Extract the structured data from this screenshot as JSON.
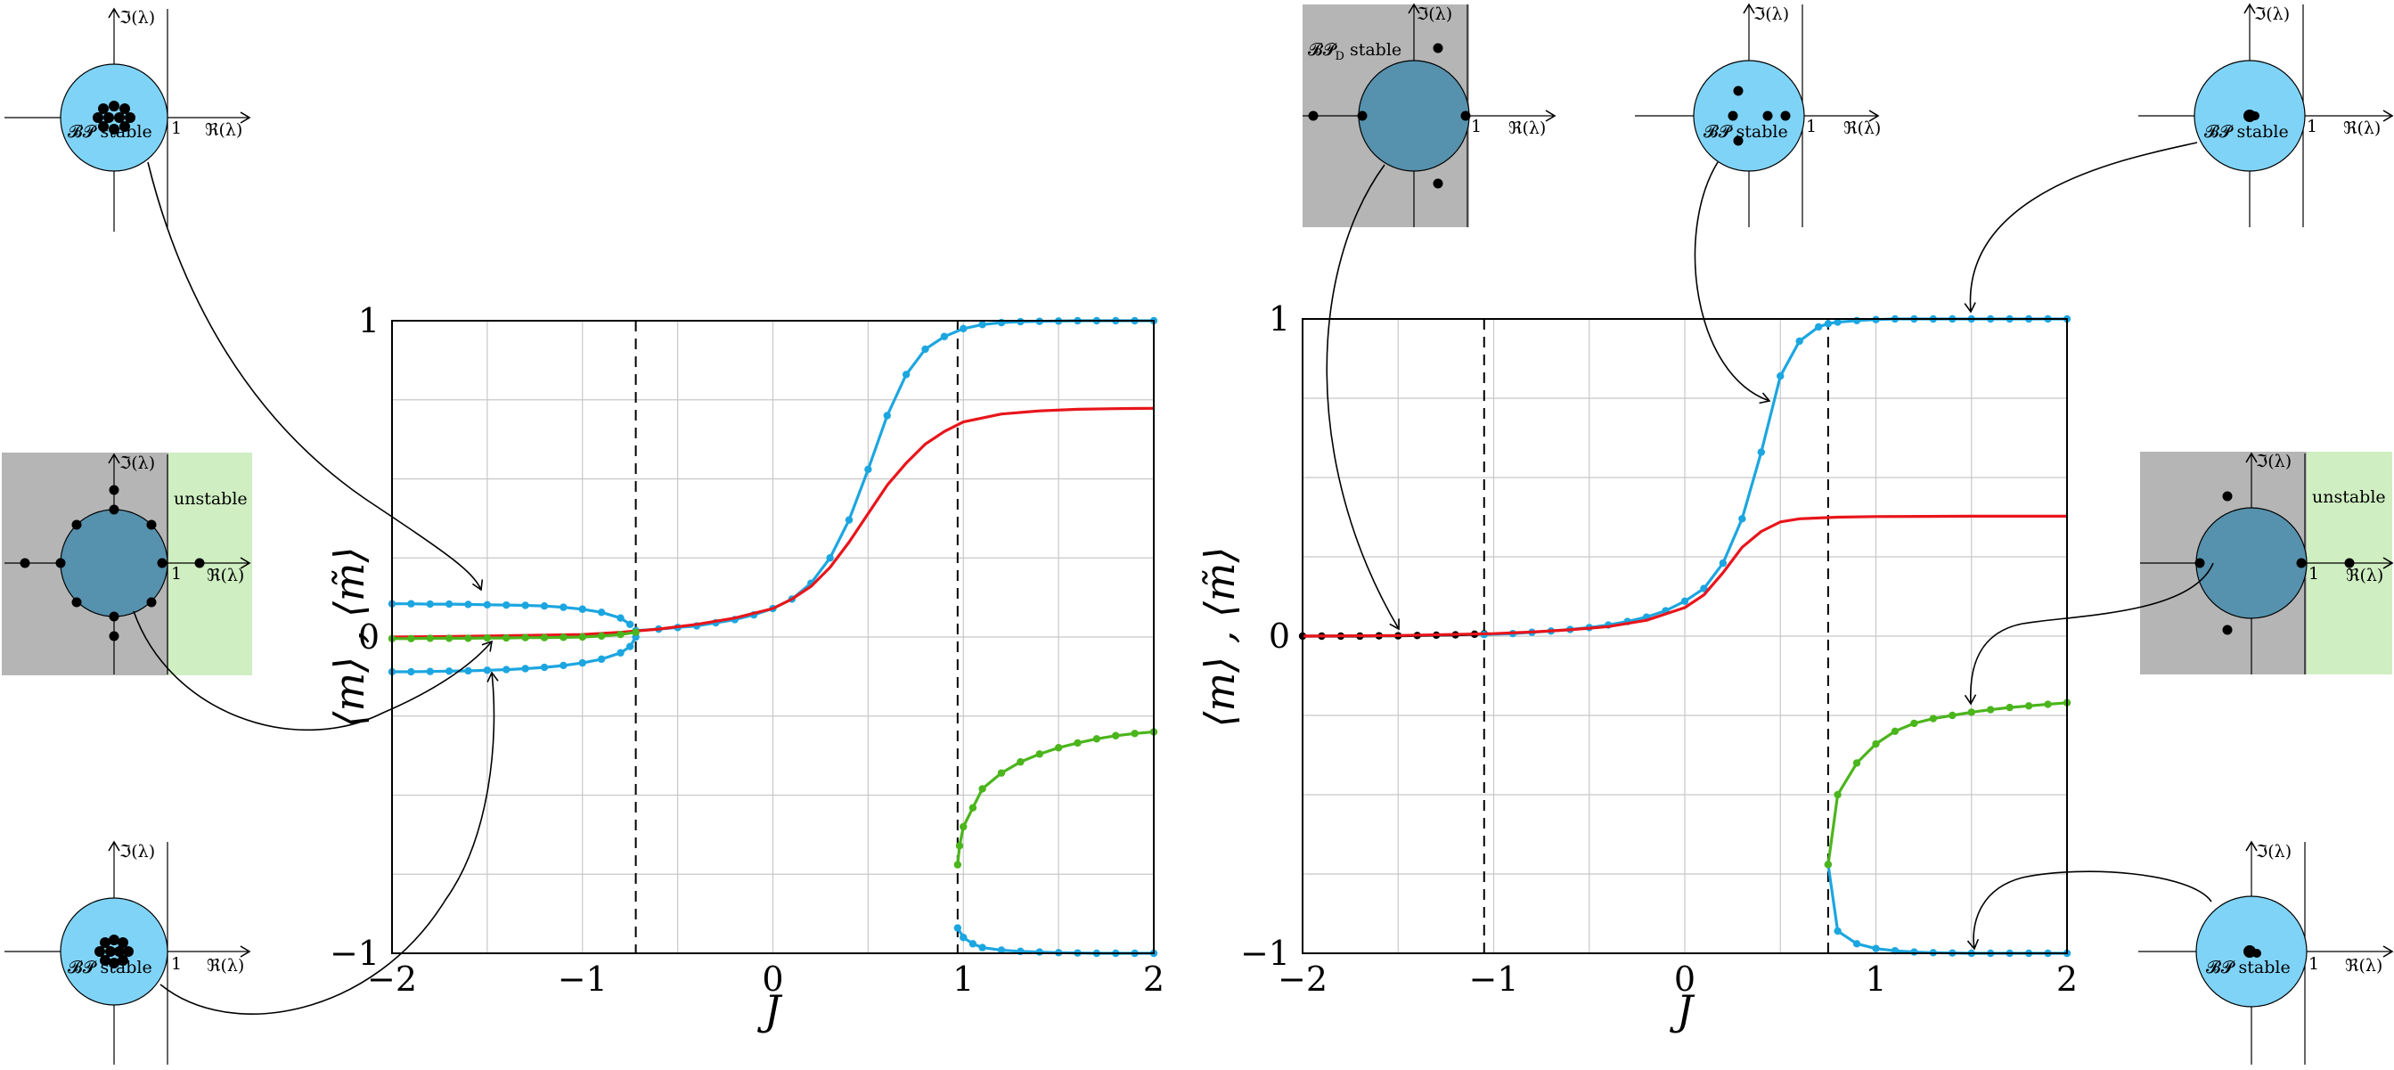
{
  "colors": {
    "blue": "#1ca6e0",
    "red": "#e8151b",
    "green": "#4bb51c",
    "black": "#000000",
    "disk": "#7fd3f7",
    "disk_dark": "#5691ad",
    "stable_bg": "#b5b5b5",
    "unstable_bg": "#cfeec2",
    "grid": "#c8c8c8"
  },
  "chart_data": [
    {
      "type": "line",
      "xlabel": "J",
      "ylabel": "⟨m⟩ , ⟨m̃⟩",
      "xlim": [
        -2,
        2
      ],
      "ylim": [
        -1,
        1
      ],
      "xticks": [
        -2,
        -1,
        0,
        1,
        2
      ],
      "xtick_labels": [
        "−2",
        "−1",
        "0",
        "1",
        "2"
      ],
      "yticks": [
        -1,
        0,
        1
      ],
      "ytick_labels": [
        "−1",
        "0",
        "1"
      ],
      "grid": true,
      "vlines": [
        -0.72,
        0.97
      ],
      "series": [
        {
          "color": "blue",
          "markers": true,
          "x": [
            -2,
            -1.9,
            -1.8,
            -1.7,
            -1.6,
            -1.5,
            -1.4,
            -1.3,
            -1.2,
            -1.1,
            -1.0,
            -0.9,
            -0.8,
            -0.75
          ],
          "y": [
            0.105,
            0.105,
            0.104,
            0.104,
            0.103,
            0.102,
            0.101,
            0.1,
            0.098,
            0.094,
            0.088,
            0.078,
            0.06,
            0.04
          ]
        },
        {
          "color": "blue",
          "markers": true,
          "x": [
            -2,
            -1.9,
            -1.8,
            -1.7,
            -1.6,
            -1.5,
            -1.4,
            -1.3,
            -1.2,
            -1.1,
            -1.0,
            -0.9,
            -0.8,
            -0.75,
            -0.72
          ],
          "y": [
            -0.11,
            -0.11,
            -0.109,
            -0.108,
            -0.107,
            -0.105,
            -0.103,
            -0.1,
            -0.096,
            -0.09,
            -0.082,
            -0.07,
            -0.05,
            -0.03,
            0.0
          ]
        },
        {
          "color": "blue",
          "markers": true,
          "x": [
            -0.72,
            -0.6,
            -0.5,
            -0.4,
            -0.3,
            -0.2,
            -0.1,
            0.0,
            0.1,
            0.2,
            0.3,
            0.4,
            0.5,
            0.6,
            0.7,
            0.8,
            0.9,
            1.0,
            1.1,
            1.2,
            1.3,
            1.4,
            1.5,
            1.6,
            1.7,
            1.8,
            1.9,
            2.0
          ],
          "y": [
            0.02,
            0.025,
            0.03,
            0.035,
            0.045,
            0.055,
            0.07,
            0.09,
            0.12,
            0.17,
            0.25,
            0.37,
            0.53,
            0.7,
            0.83,
            0.91,
            0.95,
            0.975,
            0.988,
            0.994,
            0.997,
            0.998,
            0.999,
            1,
            1,
            1,
            1,
            1
          ]
        },
        {
          "color": "blue",
          "markers": true,
          "x": [
            0.97,
            1.0,
            1.05,
            1.1,
            1.2,
            1.3,
            1.4,
            1.5,
            1.6,
            1.7,
            1.8,
            1.9,
            2.0
          ],
          "y": [
            -0.92,
            -0.95,
            -0.97,
            -0.982,
            -0.99,
            -0.994,
            -0.996,
            -0.998,
            -0.999,
            -1,
            -1,
            -1,
            -1
          ]
        },
        {
          "color": "red",
          "markers": false,
          "x": [
            -2,
            -1.5,
            -1,
            -0.8,
            -0.6,
            -0.4,
            -0.2,
            0,
            0.1,
            0.2,
            0.3,
            0.4,
            0.5,
            0.6,
            0.7,
            0.8,
            0.9,
            1,
            1.2,
            1.4,
            1.6,
            1.8,
            2
          ],
          "y": [
            0.0,
            0.003,
            0.008,
            0.015,
            0.025,
            0.04,
            0.06,
            0.09,
            0.12,
            0.16,
            0.22,
            0.3,
            0.39,
            0.48,
            0.55,
            0.61,
            0.65,
            0.68,
            0.705,
            0.715,
            0.72,
            0.722,
            0.723
          ]
        },
        {
          "color": "green",
          "markers": true,
          "x": [
            -2,
            -1.9,
            -1.8,
            -1.7,
            -1.6,
            -1.5,
            -1.4,
            -1.3,
            -1.2,
            -1.1,
            -1.0,
            -0.9,
            -0.8,
            -0.72
          ],
          "y": [
            -0.005,
            -0.005,
            -0.004,
            -0.004,
            -0.004,
            -0.003,
            -0.003,
            -0.002,
            -0.002,
            -0.001,
            0,
            0.003,
            0.008,
            0.015
          ]
        },
        {
          "color": "green",
          "markers": true,
          "x": [
            0.97,
            0.98,
            1.0,
            1.05,
            1.1,
            1.2,
            1.3,
            1.4,
            1.5,
            1.6,
            1.7,
            1.8,
            1.9,
            2.0
          ],
          "y": [
            -0.72,
            -0.66,
            -0.6,
            -0.54,
            -0.48,
            -0.43,
            -0.395,
            -0.37,
            -0.35,
            -0.335,
            -0.322,
            -0.312,
            -0.305,
            -0.3
          ]
        }
      ]
    },
    {
      "type": "line",
      "xlabel": "J",
      "ylabel": "⟨m⟩ , ⟨m̃⟩",
      "xlim": [
        -2,
        2
      ],
      "ylim": [
        -1,
        1
      ],
      "xticks": [
        -2,
        -1,
        0,
        1,
        2
      ],
      "xtick_labels": [
        "−2",
        "−1",
        "0",
        "1",
        "2"
      ],
      "yticks": [
        -1,
        0,
        1
      ],
      "ytick_labels": [
        "−1",
        "0",
        "1"
      ],
      "grid": true,
      "vlines": [
        -1.05,
        0.75
      ],
      "series": [
        {
          "color": "black",
          "markers": true,
          "x": [
            -2,
            -1.9,
            -1.8,
            -1.7,
            -1.6,
            -1.5,
            -1.4,
            -1.3,
            -1.2,
            -1.1,
            -1.05
          ],
          "y": [
            0,
            0,
            0,
            0,
            0.001,
            0.001,
            0.002,
            0.003,
            0.004,
            0.006,
            0.007
          ]
        },
        {
          "color": "blue",
          "markers": true,
          "x": [
            -1.05,
            -0.9,
            -0.8,
            -0.7,
            -0.6,
            -0.5,
            -0.4,
            -0.3,
            -0.2,
            -0.1,
            0.0,
            0.1,
            0.2,
            0.3,
            0.4,
            0.5,
            0.6,
            0.7,
            0.75,
            0.8,
            0.9,
            1.0,
            1.1,
            1.2,
            1.3,
            1.4,
            1.5,
            1.6,
            1.7,
            1.8,
            1.9,
            2.0
          ],
          "y": [
            0.005,
            0.008,
            0.012,
            0.016,
            0.021,
            0.027,
            0.035,
            0.046,
            0.06,
            0.08,
            0.11,
            0.15,
            0.23,
            0.37,
            0.58,
            0.82,
            0.93,
            0.975,
            0.985,
            0.99,
            0.995,
            0.998,
            1,
            1,
            1,
            1,
            1,
            1,
            1,
            1,
            1,
            1
          ]
        },
        {
          "color": "blue",
          "markers": true,
          "x": [
            0.75,
            0.8,
            0.9,
            1.0,
            1.1,
            1.2,
            1.3,
            1.4,
            1.5,
            1.6,
            1.7,
            1.8,
            1.9,
            2.0
          ],
          "y": [
            -0.72,
            -0.93,
            -0.97,
            -0.985,
            -0.992,
            -0.996,
            -0.998,
            -0.999,
            -1,
            -1,
            -1,
            -1,
            -1,
            -1
          ]
        },
        {
          "color": "red",
          "markers": false,
          "x": [
            -2,
            -1.5,
            -1,
            -0.8,
            -0.6,
            -0.4,
            -0.2,
            0,
            0.1,
            0.2,
            0.3,
            0.4,
            0.5,
            0.6,
            0.8,
            1,
            1.5,
            2
          ],
          "y": [
            0,
            0.002,
            0.008,
            0.013,
            0.02,
            0.03,
            0.05,
            0.09,
            0.13,
            0.2,
            0.28,
            0.33,
            0.36,
            0.37,
            0.375,
            0.377,
            0.378,
            0.378
          ]
        },
        {
          "color": "green",
          "markers": true,
          "x": [
            0.75,
            0.8,
            0.9,
            1.0,
            1.1,
            1.2,
            1.3,
            1.4,
            1.5,
            1.6,
            1.7,
            1.8,
            1.9,
            2.0
          ],
          "y": [
            -0.72,
            -0.5,
            -0.4,
            -0.34,
            -0.3,
            -0.275,
            -0.26,
            -0.25,
            -0.24,
            -0.232,
            -0.225,
            -0.22,
            -0.215,
            -0.21
          ]
        }
      ]
    }
  ],
  "insets": {
    "re_label": "ℜ(λ)",
    "im_label": "ℑ(λ)",
    "one_label": "1",
    "bp_stable": "𝓑𝓟 stable",
    "bpd_stable": "𝓑𝓟",
    "bpd_sub": "D",
    "bpd_suffix": " stable",
    "unstable": "unstable"
  }
}
